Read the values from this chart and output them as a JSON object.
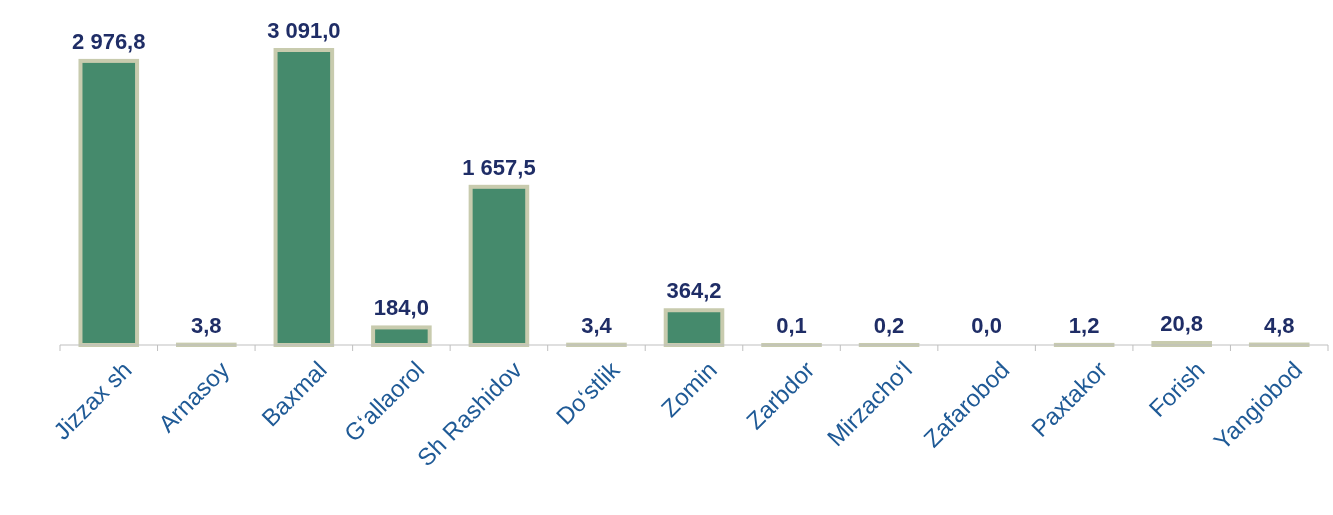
{
  "chart_data": {
    "type": "bar",
    "categories": [
      "Jizzax sh",
      "Arnasoy",
      "Baxmal",
      "G‘allaorol",
      "Sh Rashidov",
      "Do‘stlik",
      "Zomin",
      "Zarbdor",
      "Mirzacho‘l",
      "Zafarobod",
      "Paxtakor",
      "Forish",
      "Yangiobod"
    ],
    "values": [
      2976.8,
      3.8,
      3091.0,
      184.0,
      1657.5,
      3.4,
      364.2,
      0.1,
      0.2,
      0.0,
      1.2,
      20.8,
      4.8
    ],
    "value_labels": [
      "2 976,8",
      "3,8",
      "3 091,0",
      "184,0",
      "1 657,5",
      "3,4",
      "364,2",
      "0,1",
      "0,2",
      "0,0",
      "1,2",
      "20,8",
      "4,8"
    ],
    "color": "#458a6c"
  }
}
